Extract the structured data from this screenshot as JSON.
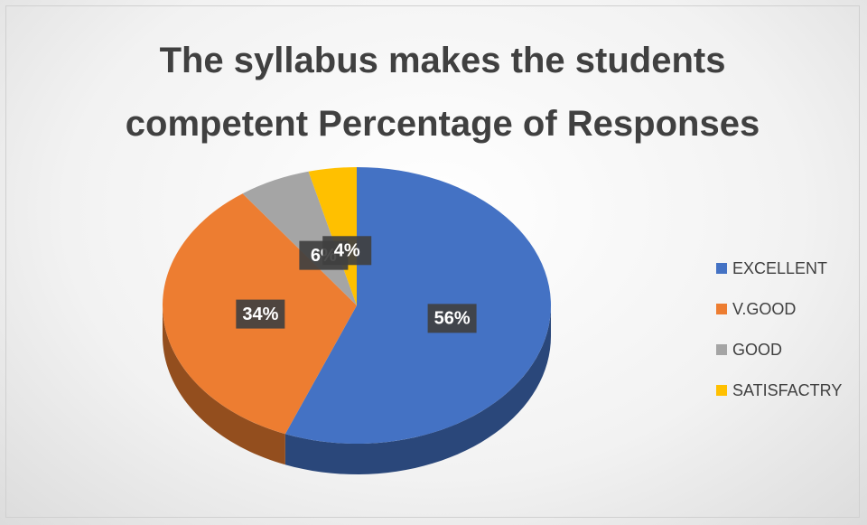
{
  "chart_data": {
    "type": "pie",
    "title": "The syllabus makes the students competent Percentage of Responses",
    "categories": [
      "EXCELLENT",
      "V.GOOD",
      "GOOD",
      "SATISFACTRY"
    ],
    "values": [
      56,
      34,
      6,
      4
    ],
    "value_labels": [
      "56%",
      "34%",
      "6%",
      "4%"
    ],
    "colors": [
      "#4472c4",
      "#ed7d31",
      "#a5a5a5",
      "#ffc000"
    ],
    "legend": "right"
  }
}
